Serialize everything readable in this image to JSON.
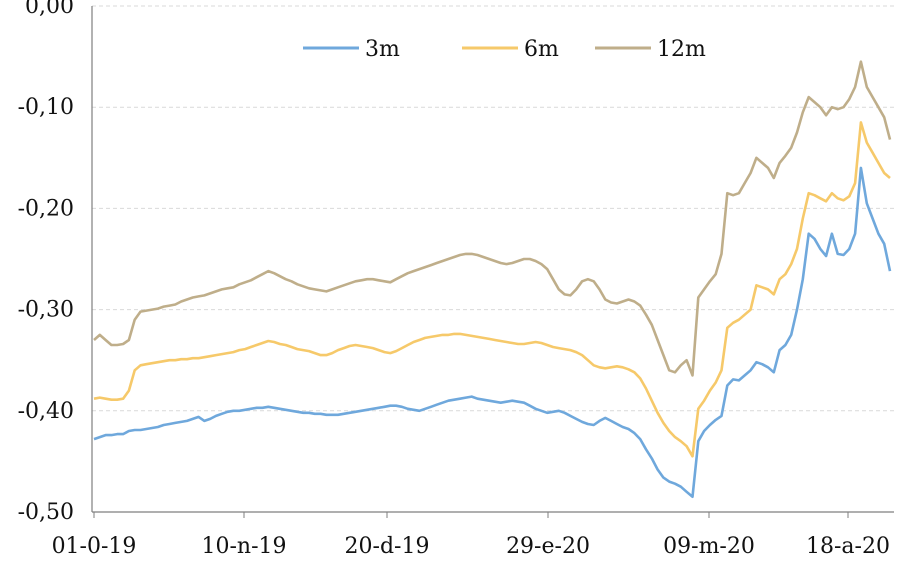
{
  "chart_data": {
    "type": "line",
    "title": "",
    "xlabel": "",
    "ylabel": "",
    "ylim": [
      -0.5,
      0.0
    ],
    "y_ticks": [
      {
        "value": 0.0,
        "label": "0,00"
      },
      {
        "value": -0.1,
        "label": "-0,10"
      },
      {
        "value": -0.2,
        "label": "-0,20"
      },
      {
        "value": -0.3,
        "label": "-0,30"
      },
      {
        "value": -0.4,
        "label": "-0,40"
      },
      {
        "value": -0.5,
        "label": "-0,50"
      }
    ],
    "x_ticks": [
      "01-0-19",
      "10-n-19",
      "20-d-19",
      "29-e-20",
      "09-m-20",
      "18-a-20"
    ],
    "grid": "horizontal",
    "legend_position": "top-center",
    "colors": {
      "3m": "#6fa8dc",
      "6m": "#f6c96a",
      "12m": "#bfae8a"
    },
    "series": [
      {
        "name": "3m",
        "values": [
          -0.428,
          -0.426,
          -0.424,
          -0.424,
          -0.423,
          -0.423,
          -0.42,
          -0.419,
          -0.419,
          -0.418,
          -0.417,
          -0.416,
          -0.414,
          -0.413,
          -0.412,
          -0.411,
          -0.41,
          -0.408,
          -0.406,
          -0.41,
          -0.408,
          -0.405,
          -0.403,
          -0.401,
          -0.4,
          -0.4,
          -0.399,
          -0.398,
          -0.397,
          -0.397,
          -0.396,
          -0.397,
          -0.398,
          -0.399,
          -0.4,
          -0.401,
          -0.402,
          -0.402,
          -0.403,
          -0.403,
          -0.404,
          -0.404,
          -0.404,
          -0.403,
          -0.402,
          -0.401,
          -0.4,
          -0.399,
          -0.398,
          -0.397,
          -0.396,
          -0.395,
          -0.395,
          -0.396,
          -0.398,
          -0.399,
          -0.4,
          -0.398,
          -0.396,
          -0.394,
          -0.392,
          -0.39,
          -0.389,
          -0.388,
          -0.387,
          -0.386,
          -0.388,
          -0.389,
          -0.39,
          -0.391,
          -0.392,
          -0.391,
          -0.39,
          -0.391,
          -0.392,
          -0.395,
          -0.398,
          -0.4,
          -0.402,
          -0.401,
          -0.4,
          -0.402,
          -0.405,
          -0.408,
          -0.411,
          -0.413,
          -0.414,
          -0.41,
          -0.407,
          -0.41,
          -0.413,
          -0.416,
          -0.418,
          -0.422,
          -0.428,
          -0.438,
          -0.447,
          -0.458,
          -0.466,
          -0.47,
          -0.472,
          -0.475,
          -0.48,
          -0.485,
          -0.43,
          -0.42,
          -0.414,
          -0.409,
          -0.405,
          -0.375,
          -0.369,
          -0.37,
          -0.365,
          -0.36,
          -0.352,
          -0.354,
          -0.357,
          -0.362,
          -0.34,
          -0.335,
          -0.325,
          -0.3,
          -0.27,
          -0.225,
          -0.23,
          -0.24,
          -0.247,
          -0.225,
          -0.245,
          -0.246,
          -0.24,
          -0.225,
          -0.16,
          -0.195,
          -0.21,
          -0.225,
          -0.235,
          -0.262
        ]
      },
      {
        "name": "6m",
        "values": [
          -0.388,
          -0.387,
          -0.388,
          -0.389,
          -0.389,
          -0.388,
          -0.38,
          -0.36,
          -0.355,
          -0.354,
          -0.353,
          -0.352,
          -0.351,
          -0.35,
          -0.35,
          -0.349,
          -0.349,
          -0.348,
          -0.348,
          -0.347,
          -0.346,
          -0.345,
          -0.344,
          -0.343,
          -0.342,
          -0.34,
          -0.339,
          -0.337,
          -0.335,
          -0.333,
          -0.331,
          -0.332,
          -0.334,
          -0.335,
          -0.337,
          -0.339,
          -0.34,
          -0.341,
          -0.343,
          -0.345,
          -0.345,
          -0.343,
          -0.34,
          -0.338,
          -0.336,
          -0.335,
          -0.336,
          -0.337,
          -0.338,
          -0.34,
          -0.342,
          -0.343,
          -0.341,
          -0.338,
          -0.335,
          -0.332,
          -0.33,
          -0.328,
          -0.327,
          -0.326,
          -0.325,
          -0.325,
          -0.324,
          -0.324,
          -0.325,
          -0.326,
          -0.327,
          -0.328,
          -0.329,
          -0.33,
          -0.331,
          -0.332,
          -0.333,
          -0.334,
          -0.334,
          -0.333,
          -0.332,
          -0.333,
          -0.335,
          -0.337,
          -0.338,
          -0.339,
          -0.34,
          -0.342,
          -0.345,
          -0.35,
          -0.355,
          -0.357,
          -0.358,
          -0.357,
          -0.356,
          -0.357,
          -0.359,
          -0.362,
          -0.368,
          -0.378,
          -0.39,
          -0.402,
          -0.412,
          -0.42,
          -0.426,
          -0.43,
          -0.435,
          -0.445,
          -0.398,
          -0.39,
          -0.38,
          -0.372,
          -0.36,
          -0.318,
          -0.313,
          -0.31,
          -0.305,
          -0.3,
          -0.276,
          -0.278,
          -0.28,
          -0.285,
          -0.27,
          -0.265,
          -0.255,
          -0.24,
          -0.21,
          -0.185,
          -0.187,
          -0.19,
          -0.193,
          -0.185,
          -0.19,
          -0.192,
          -0.188,
          -0.175,
          -0.115,
          -0.135,
          -0.145,
          -0.155,
          -0.165,
          -0.17
        ]
      },
      {
        "name": "12m",
        "values": [
          -0.33,
          -0.325,
          -0.33,
          -0.335,
          -0.335,
          -0.334,
          -0.33,
          -0.31,
          -0.302,
          -0.301,
          -0.3,
          -0.299,
          -0.297,
          -0.296,
          -0.295,
          -0.292,
          -0.29,
          -0.288,
          -0.287,
          -0.286,
          -0.284,
          -0.282,
          -0.28,
          -0.279,
          -0.278,
          -0.275,
          -0.273,
          -0.271,
          -0.268,
          -0.265,
          -0.262,
          -0.264,
          -0.267,
          -0.27,
          -0.272,
          -0.275,
          -0.277,
          -0.279,
          -0.28,
          -0.281,
          -0.282,
          -0.28,
          -0.278,
          -0.276,
          -0.274,
          -0.272,
          -0.271,
          -0.27,
          -0.27,
          -0.271,
          -0.272,
          -0.273,
          -0.27,
          -0.267,
          -0.264,
          -0.262,
          -0.26,
          -0.258,
          -0.256,
          -0.254,
          -0.252,
          -0.25,
          -0.248,
          -0.246,
          -0.245,
          -0.245,
          -0.246,
          -0.248,
          -0.25,
          -0.252,
          -0.254,
          -0.255,
          -0.254,
          -0.252,
          -0.25,
          -0.25,
          -0.252,
          -0.255,
          -0.26,
          -0.27,
          -0.28,
          -0.285,
          -0.286,
          -0.28,
          -0.272,
          -0.27,
          -0.272,
          -0.28,
          -0.29,
          -0.293,
          -0.294,
          -0.292,
          -0.29,
          -0.292,
          -0.296,
          -0.305,
          -0.315,
          -0.33,
          -0.345,
          -0.36,
          -0.362,
          -0.355,
          -0.35,
          -0.365,
          -0.288,
          -0.28,
          -0.272,
          -0.265,
          -0.245,
          -0.185,
          -0.187,
          -0.185,
          -0.175,
          -0.165,
          -0.15,
          -0.155,
          -0.16,
          -0.17,
          -0.155,
          -0.148,
          -0.14,
          -0.125,
          -0.105,
          -0.09,
          -0.095,
          -0.1,
          -0.108,
          -0.1,
          -0.102,
          -0.1,
          -0.092,
          -0.08,
          -0.055,
          -0.08,
          -0.09,
          -0.1,
          -0.11,
          -0.132
        ]
      }
    ]
  }
}
